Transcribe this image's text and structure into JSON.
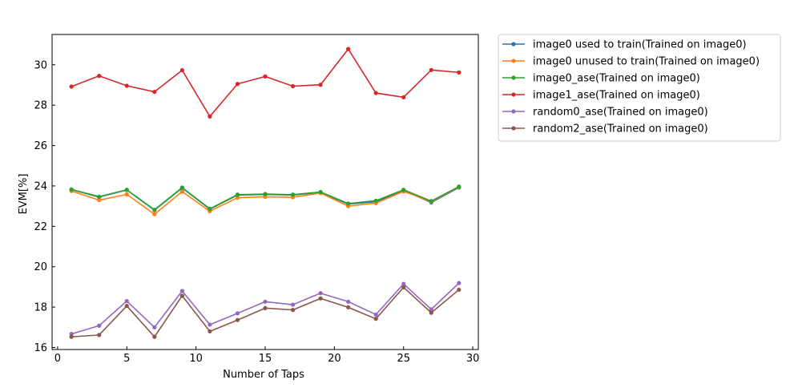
{
  "chart_data": {
    "type": "line",
    "title": "",
    "xlabel": "Number of Taps",
    "ylabel": "EVM[%]",
    "xlim": [
      -0.4,
      30.4
    ],
    "ylim": [
      15.9,
      31.5
    ],
    "xticks": [
      0,
      5,
      10,
      15,
      20,
      25,
      30
    ],
    "yticks": [
      16,
      18,
      20,
      22,
      24,
      26,
      28,
      30
    ],
    "grid": false,
    "legend_position": "outside upper right",
    "x": [
      1,
      3,
      5,
      7,
      9,
      11,
      13,
      15,
      17,
      19,
      21,
      23,
      25,
      27,
      29
    ],
    "series": [
      {
        "name": "image0 used to train(Trained on image0)",
        "color": "#1f77b4",
        "values": [
          23.82,
          23.45,
          23.8,
          22.8,
          23.9,
          22.85,
          23.55,
          23.58,
          23.55,
          23.68,
          23.1,
          23.22,
          23.78,
          23.18,
          23.92
        ]
      },
      {
        "name": "image0 unused to train(Trained on image0)",
        "color": "#ff7f0e",
        "values": [
          23.75,
          23.3,
          23.58,
          22.6,
          23.72,
          22.75,
          23.42,
          23.46,
          23.44,
          23.65,
          23.0,
          23.15,
          23.73,
          23.22,
          23.95
        ]
      },
      {
        "name": "image0_ase(Trained on image0)",
        "color": "#2ca02c",
        "values": [
          23.83,
          23.47,
          23.81,
          22.82,
          23.92,
          22.87,
          23.57,
          23.6,
          23.57,
          23.7,
          23.13,
          23.27,
          23.81,
          23.25,
          23.97
        ]
      },
      {
        "name": "image1_ase(Trained on image0)",
        "color": "#d62728",
        "values": [
          28.92,
          29.45,
          28.96,
          28.66,
          29.73,
          27.44,
          29.05,
          29.42,
          28.94,
          29.01,
          30.78,
          28.6,
          28.39,
          29.74,
          29.62
        ]
      },
      {
        "name": "random0_ase(Trained on image0)",
        "color": "#9467bd",
        "values": [
          16.67,
          17.08,
          18.3,
          17.0,
          18.8,
          17.13,
          17.69,
          18.27,
          18.12,
          18.69,
          18.27,
          17.63,
          19.15,
          17.89,
          19.19
        ]
      },
      {
        "name": "random2_ase(Trained on image0)",
        "color": "#8c564b",
        "values": [
          16.53,
          16.62,
          18.06,
          16.53,
          18.56,
          16.8,
          17.36,
          17.95,
          17.86,
          18.43,
          17.99,
          17.42,
          18.98,
          17.72,
          18.86
        ]
      }
    ]
  }
}
